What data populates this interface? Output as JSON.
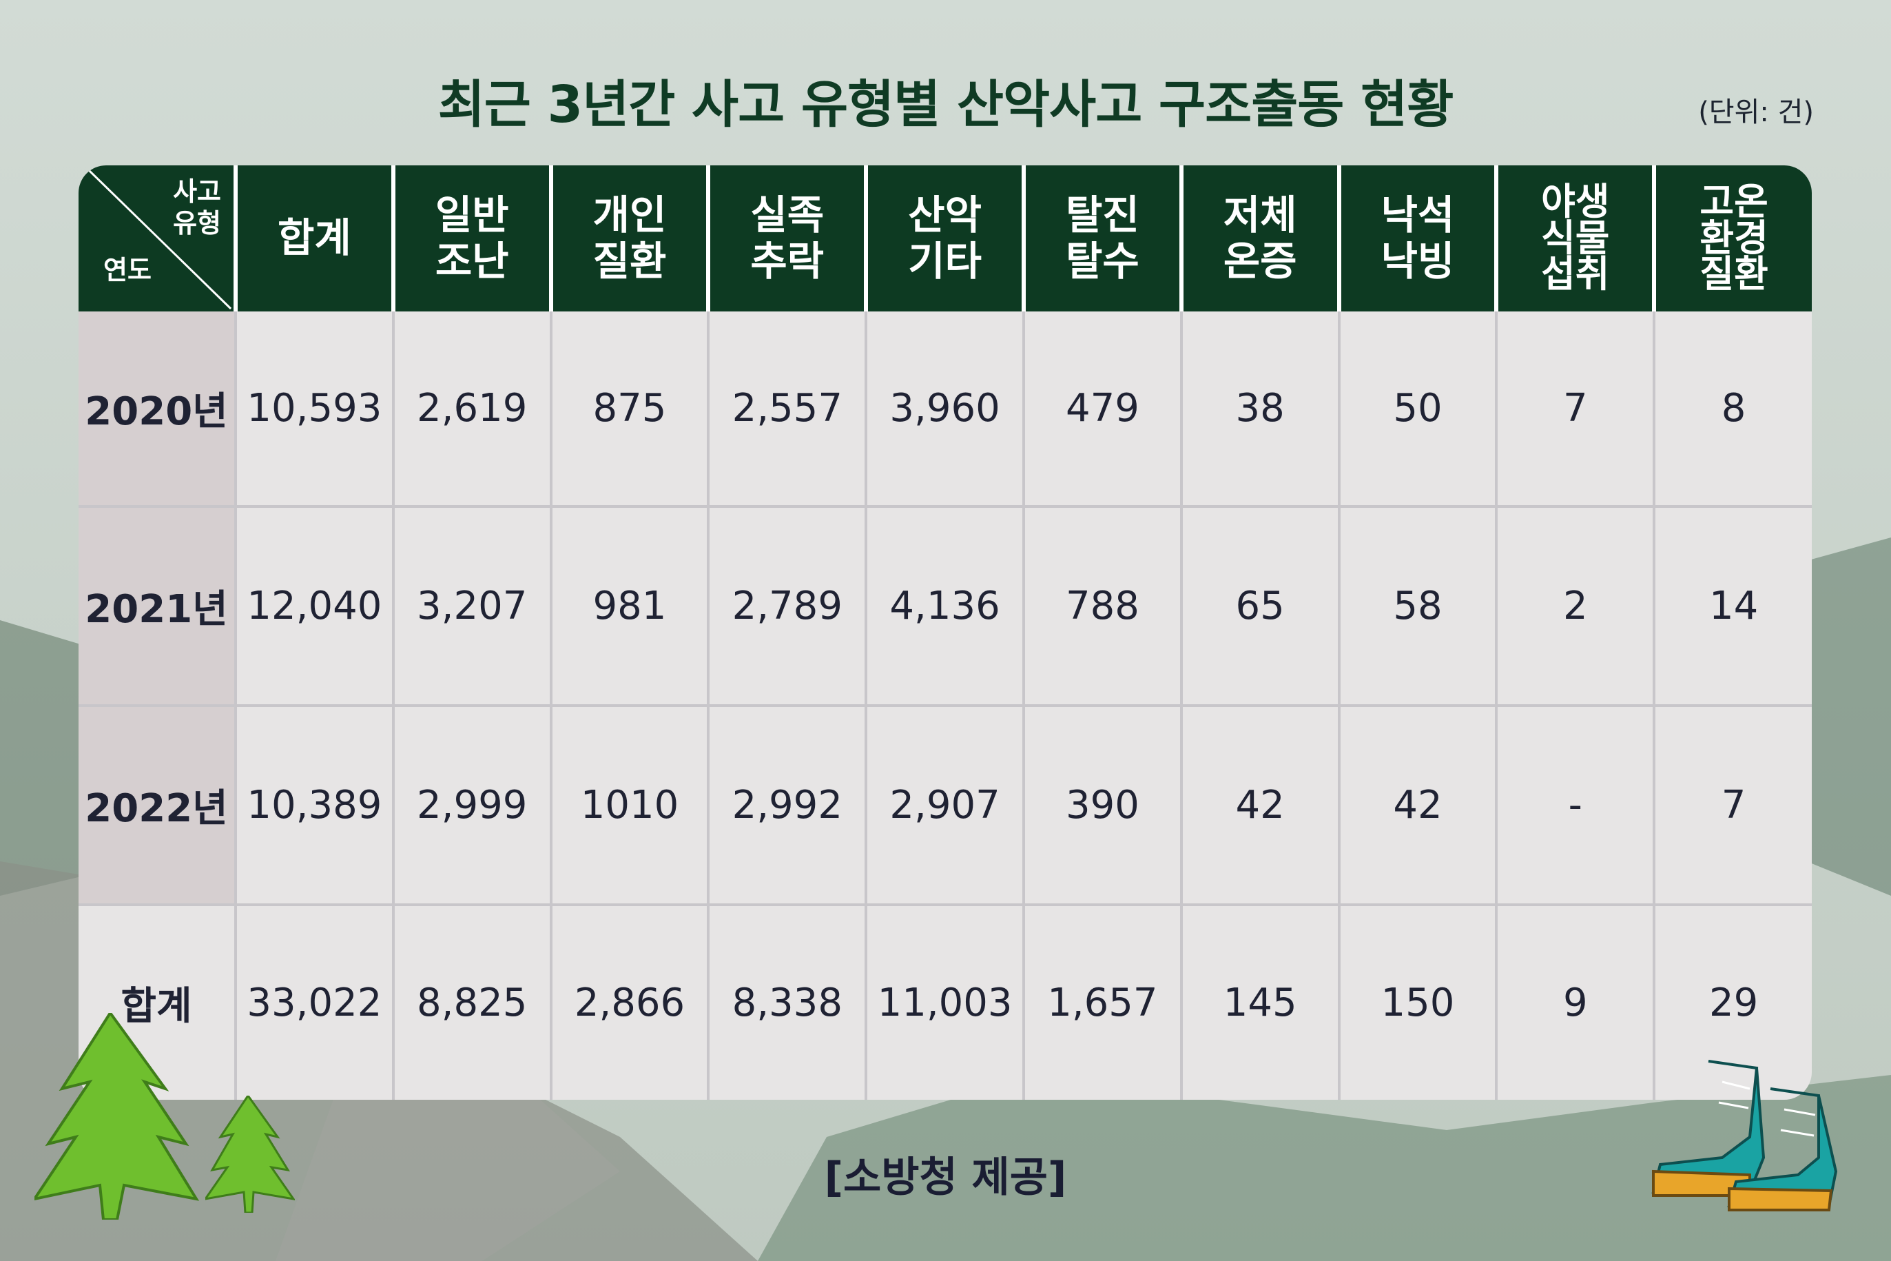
{
  "title": "최근 3년간 사고 유형별 산악사고 구조출동 현황",
  "unit": "(단위: 건)",
  "source": "[소방청 제공]",
  "colors": {
    "header_bg": "#0d3a22",
    "year_col_bg": "#d6cfd0",
    "cell_bg": "#e7e5e5",
    "title": "#0f3b24"
  },
  "header": {
    "corner_top": "사고\n유형",
    "corner_bottom": "연도",
    "columns": [
      "합계",
      "일반\n조난",
      "개인\n질환",
      "실족\n추락",
      "산악\n기타",
      "탈진\n탈수",
      "저체\n온증",
      "낙석\n낙빙",
      "야생\n식물\n섭취",
      "고온\n환경\n질환"
    ]
  },
  "chart_data": {
    "type": "table",
    "title": "최근 3년간 사고 유형별 산악사고 구조출동 현황",
    "columns": [
      "합계",
      "일반 조난",
      "개인 질환",
      "실족 추락",
      "산악 기타",
      "탈진 탈수",
      "저체 온증",
      "낙석 낙빙",
      "야생 식물 섭취",
      "고온 환경 질환"
    ],
    "rows": [
      {
        "label": "2020년",
        "values": [
          "10,593",
          "2,619",
          "875",
          "2,557",
          "3,960",
          "479",
          "38",
          "50",
          "7",
          "8"
        ]
      },
      {
        "label": "2021년",
        "values": [
          "12,040",
          "3,207",
          "981",
          "2,789",
          "4,136",
          "788",
          "65",
          "58",
          "2",
          "14"
        ]
      },
      {
        "label": "2022년",
        "values": [
          "10,389",
          "2,999",
          "1010",
          "2,992",
          "2,907",
          "390",
          "42",
          "42",
          "-",
          "7"
        ]
      },
      {
        "label": "합계",
        "values": [
          "33,022",
          "8,825",
          "2,866",
          "8,338",
          "11,003",
          "1,657",
          "145",
          "150",
          "9",
          "29"
        ]
      }
    ]
  }
}
